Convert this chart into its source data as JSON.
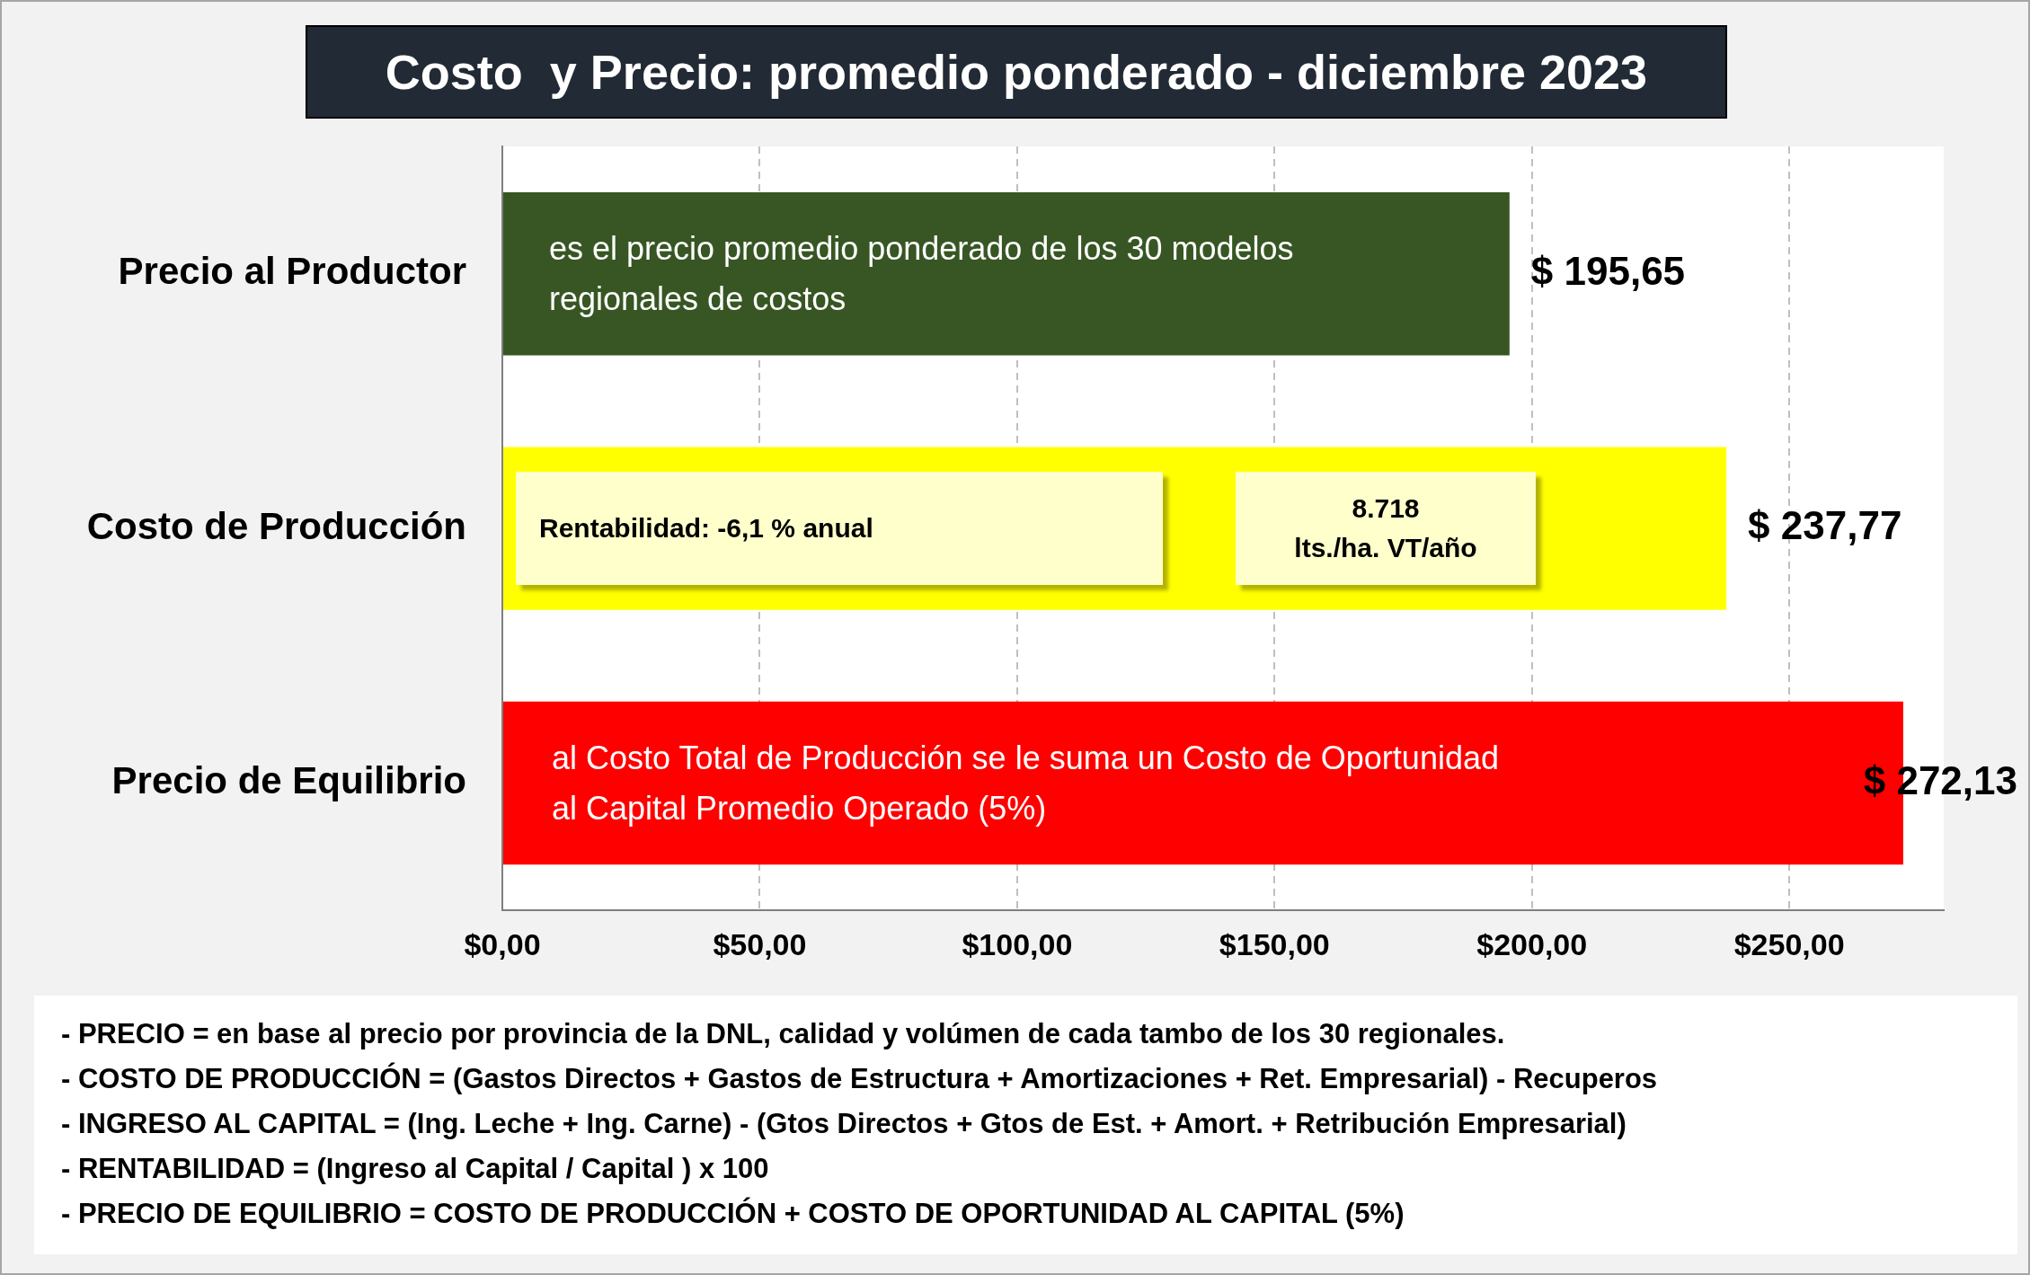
{
  "chart_data": {
    "type": "bar",
    "orientation": "horizontal",
    "title": "Costo  y Precio: promedio ponderado - diciembre 2023",
    "categories": [
      "Precio al Productor",
      "Costo de Producción",
      "Precio de Equilibrio"
    ],
    "values": [
      195.65,
      237.77,
      272.13
    ],
    "colors": [
      "#375623",
      "#ffff00",
      "#ff0000"
    ],
    "value_labels": [
      "$ 195,65",
      "$ 237,77",
      "$ 272,13"
    ],
    "xlim": [
      0,
      280
    ],
    "xticks": [
      {
        "value": 0,
        "label": "$0,00"
      },
      {
        "value": 50,
        "label": "$50,00"
      },
      {
        "value": 100,
        "label": "$100,00"
      },
      {
        "value": 150,
        "label": "$150,00"
      },
      {
        "value": 200,
        "label": "$200,00"
      },
      {
        "value": 250,
        "label": "$250,00"
      }
    ],
    "grid": "x",
    "legend": false,
    "annotations": [
      "es el precio promedio ponderado de los 30 modelos\nregionales de costos",
      "Rentabilidad: -6,1 % anual",
      "8.718\nlts./ha. VT/año",
      "al Costo Total de Producción se le suma un Costo de Oportunidad\nal Capital Promedio Operado (5%)",
      "- PRECIO = en base al precio por provincia de la DNL, calidad y volúmen de cada tambo de los 30 regionales.",
      "- COSTO DE PRODUCCIÓN = (Gastos Directos + Gastos de Estructura + Amortizaciones + Ret. Empresarial) - Recuperos",
      "- INGRESO AL CAPITAL = (Ing. Leche + Ing. Carne) - (Gtos Directos + Gtos de Est. + Amort. + Retribución Empresarial)",
      "- RENTABILIDAD = (Ingreso al Capital / Capital ) x 100",
      "- PRECIO DE EQUILIBRIO = COSTO DE PRODUCCIÓN + COSTO DE OPORTUNIDAD AL CAPITAL (5%)"
    ]
  }
}
